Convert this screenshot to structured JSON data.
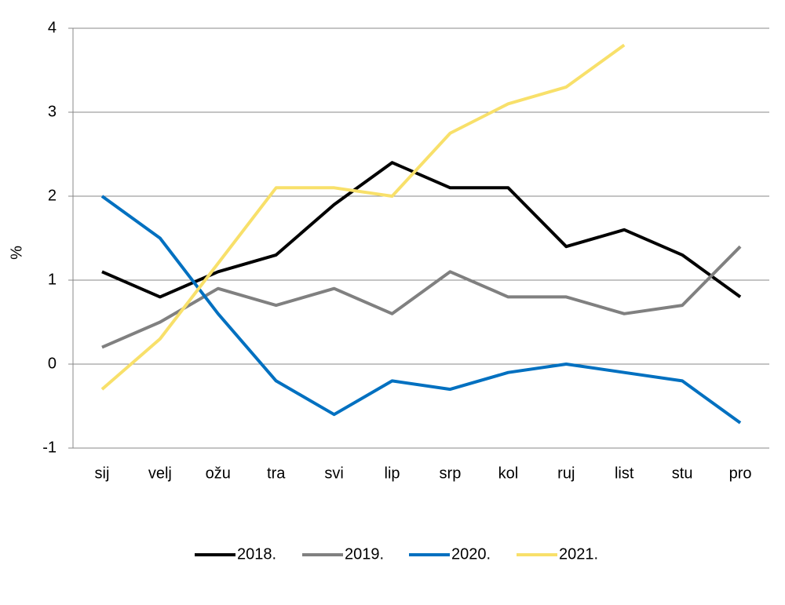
{
  "chart_data": {
    "type": "line",
    "categories": [
      "sij",
      "velj",
      "ožu",
      "tra",
      "svi",
      "lip",
      "srp",
      "kol",
      "ruj",
      "list",
      "stu",
      "pro"
    ],
    "series": [
      {
        "name": "2018.",
        "color": "#000000",
        "values": [
          1.1,
          0.8,
          1.1,
          1.3,
          1.9,
          2.4,
          2.1,
          2.1,
          1.4,
          1.6,
          1.3,
          0.8
        ]
      },
      {
        "name": "2019.",
        "color": "#808080",
        "values": [
          0.2,
          0.5,
          0.9,
          0.7,
          0.9,
          0.6,
          1.1,
          0.8,
          0.8,
          0.6,
          0.7,
          1.4
        ]
      },
      {
        "name": "2020.",
        "color": "#0070c0",
        "values": [
          2.0,
          1.5,
          0.6,
          -0.2,
          -0.6,
          -0.2,
          -0.3,
          -0.1,
          0.0,
          -0.1,
          -0.2,
          -0.7
        ]
      },
      {
        "name": "2021.",
        "color": "#f8e06a",
        "values": [
          -0.3,
          0.3,
          1.2,
          2.1,
          2.1,
          2.0,
          2.75,
          3.1,
          3.3,
          3.8,
          null,
          null
        ]
      }
    ],
    "y_label": "%",
    "ylim": [
      -1,
      4
    ],
    "yticks": [
      -1,
      0,
      1,
      2,
      3,
      4
    ],
    "grid": true,
    "legend": "bottom"
  }
}
